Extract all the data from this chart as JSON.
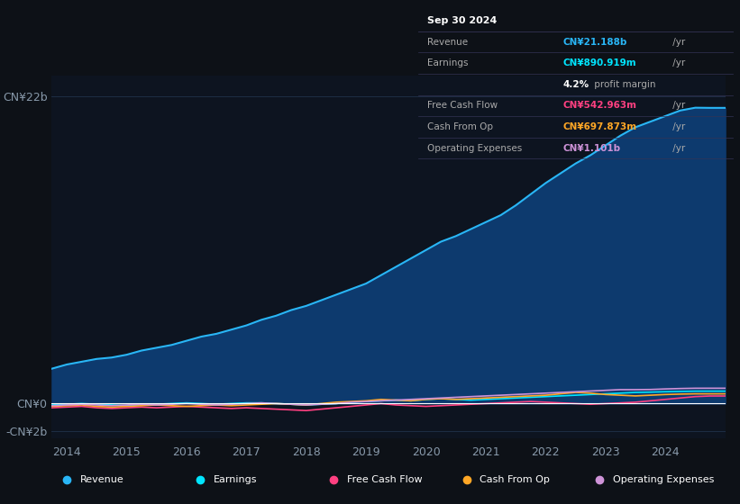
{
  "bg_color": "#0d1117",
  "plot_bg_color": "#0d1420",
  "grid_color": "#1e2d45",
  "years": [
    2013.75,
    2014,
    2014.25,
    2014.5,
    2014.75,
    2015,
    2015.25,
    2015.5,
    2015.75,
    2016,
    2016.25,
    2016.5,
    2016.75,
    2017,
    2017.25,
    2017.5,
    2017.75,
    2018,
    2018.25,
    2018.5,
    2018.75,
    2019,
    2019.25,
    2019.5,
    2019.75,
    2020,
    2020.25,
    2020.5,
    2020.75,
    2021,
    2021.25,
    2021.5,
    2021.75,
    2022,
    2022.25,
    2022.5,
    2022.75,
    2023,
    2023.25,
    2023.5,
    2023.75,
    2024,
    2024.25,
    2024.5,
    2024.75,
    2025
  ],
  "revenue": [
    2.5,
    2.8,
    3.0,
    3.2,
    3.3,
    3.5,
    3.8,
    4.0,
    4.2,
    4.5,
    4.8,
    5.0,
    5.3,
    5.6,
    6.0,
    6.3,
    6.7,
    7.0,
    7.4,
    7.8,
    8.2,
    8.6,
    9.2,
    9.8,
    10.4,
    11.0,
    11.6,
    12.0,
    12.5,
    13.0,
    13.5,
    14.2,
    15.0,
    15.8,
    16.5,
    17.2,
    17.8,
    18.5,
    19.2,
    19.8,
    20.2,
    20.6,
    21.0,
    21.2,
    21.188,
    21.188
  ],
  "earnings": [
    -0.1,
    -0.05,
    0.0,
    -0.05,
    -0.1,
    -0.15,
    -0.1,
    -0.05,
    0.0,
    0.05,
    0.0,
    -0.05,
    0.0,
    0.05,
    0.05,
    0.0,
    -0.05,
    -0.1,
    -0.05,
    0.0,
    0.1,
    0.15,
    0.2,
    0.25,
    0.2,
    0.3,
    0.35,
    0.3,
    0.25,
    0.3,
    0.35,
    0.4,
    0.45,
    0.5,
    0.55,
    0.6,
    0.65,
    0.7,
    0.75,
    0.8,
    0.82,
    0.85,
    0.87,
    0.89,
    0.891,
    0.891
  ],
  "free_cash_flow": [
    -0.3,
    -0.25,
    -0.2,
    -0.3,
    -0.35,
    -0.3,
    -0.25,
    -0.3,
    -0.25,
    -0.2,
    -0.25,
    -0.3,
    -0.35,
    -0.3,
    -0.35,
    -0.4,
    -0.45,
    -0.5,
    -0.4,
    -0.3,
    -0.2,
    -0.1,
    0.0,
    -0.1,
    -0.15,
    -0.2,
    -0.15,
    -0.1,
    -0.05,
    0.0,
    0.05,
    0.1,
    0.15,
    0.1,
    0.05,
    0.0,
    -0.05,
    0.0,
    0.05,
    0.1,
    0.2,
    0.3,
    0.4,
    0.5,
    0.543,
    0.543
  ],
  "cash_from_op": [
    -0.2,
    -0.15,
    -0.1,
    -0.2,
    -0.25,
    -0.2,
    -0.15,
    -0.1,
    -0.15,
    -0.2,
    -0.15,
    -0.1,
    -0.15,
    -0.1,
    -0.05,
    0.0,
    -0.05,
    -0.1,
    0.0,
    0.1,
    0.15,
    0.2,
    0.3,
    0.25,
    0.2,
    0.3,
    0.35,
    0.3,
    0.35,
    0.4,
    0.45,
    0.5,
    0.55,
    0.6,
    0.7,
    0.8,
    0.75,
    0.65,
    0.6,
    0.55,
    0.6,
    0.65,
    0.68,
    0.7,
    0.698,
    0.698
  ],
  "op_expenses": [
    -0.15,
    -0.1,
    -0.05,
    -0.1,
    -0.15,
    -0.1,
    -0.05,
    -0.1,
    -0.05,
    0.0,
    -0.05,
    -0.1,
    -0.05,
    0.0,
    0.05,
    0.0,
    -0.05,
    -0.1,
    -0.05,
    0.0,
    0.1,
    0.15,
    0.2,
    0.25,
    0.3,
    0.35,
    0.4,
    0.45,
    0.5,
    0.55,
    0.6,
    0.65,
    0.7,
    0.75,
    0.8,
    0.85,
    0.9,
    0.95,
    1.0,
    1.0,
    1.01,
    1.05,
    1.08,
    1.1,
    1.101,
    1.101
  ],
  "revenue_color": "#29b6f6",
  "revenue_fill": "#0d3a6e",
  "earnings_color": "#00e5ff",
  "fcf_color": "#ff4081",
  "cashop_color": "#ffa726",
  "opex_color": "#ce93d8",
  "ylim_min": -2.5,
  "ylim_max": 23.5,
  "ytick_positions": [
    22,
    0,
    -2
  ],
  "ytick_labels": [
    "CN¥22b",
    "CN¥0",
    "-CN¥2b"
  ],
  "xtick_labels": [
    "2014",
    "2015",
    "2016",
    "2017",
    "2018",
    "2019",
    "2020",
    "2021",
    "2022",
    "2023",
    "2024"
  ],
  "xtick_positions": [
    2014,
    2015,
    2016,
    2017,
    2018,
    2019,
    2020,
    2021,
    2022,
    2023,
    2024
  ],
  "info_box": {
    "title": "Sep 30 2024",
    "rows": [
      {
        "label": "Revenue",
        "value": "CN¥21.188b",
        "suffix": " /yr",
        "color": "#29b6f6",
        "is_margin": false
      },
      {
        "label": "Earnings",
        "value": "CN¥890.919m",
        "suffix": " /yr",
        "color": "#00e5ff",
        "is_margin": false
      },
      {
        "label": "",
        "value": "4.2%",
        "suffix": " profit margin",
        "color": "#ffffff",
        "is_margin": true
      },
      {
        "label": "Free Cash Flow",
        "value": "CN¥542.963m",
        "suffix": " /yr",
        "color": "#ff4081",
        "is_margin": false
      },
      {
        "label": "Cash From Op",
        "value": "CN¥697.873m",
        "suffix": " /yr",
        "color": "#ffa726",
        "is_margin": false
      },
      {
        "label": "Operating Expenses",
        "value": "CN¥1.101b",
        "suffix": " /yr",
        "color": "#ce93d8",
        "is_margin": false
      }
    ]
  },
  "legend_items": [
    {
      "label": "Revenue",
      "color": "#29b6f6"
    },
    {
      "label": "Earnings",
      "color": "#00e5ff"
    },
    {
      "label": "Free Cash Flow",
      "color": "#ff4081"
    },
    {
      "label": "Cash From Op",
      "color": "#ffa726"
    },
    {
      "label": "Operating Expenses",
      "color": "#ce93d8"
    }
  ]
}
